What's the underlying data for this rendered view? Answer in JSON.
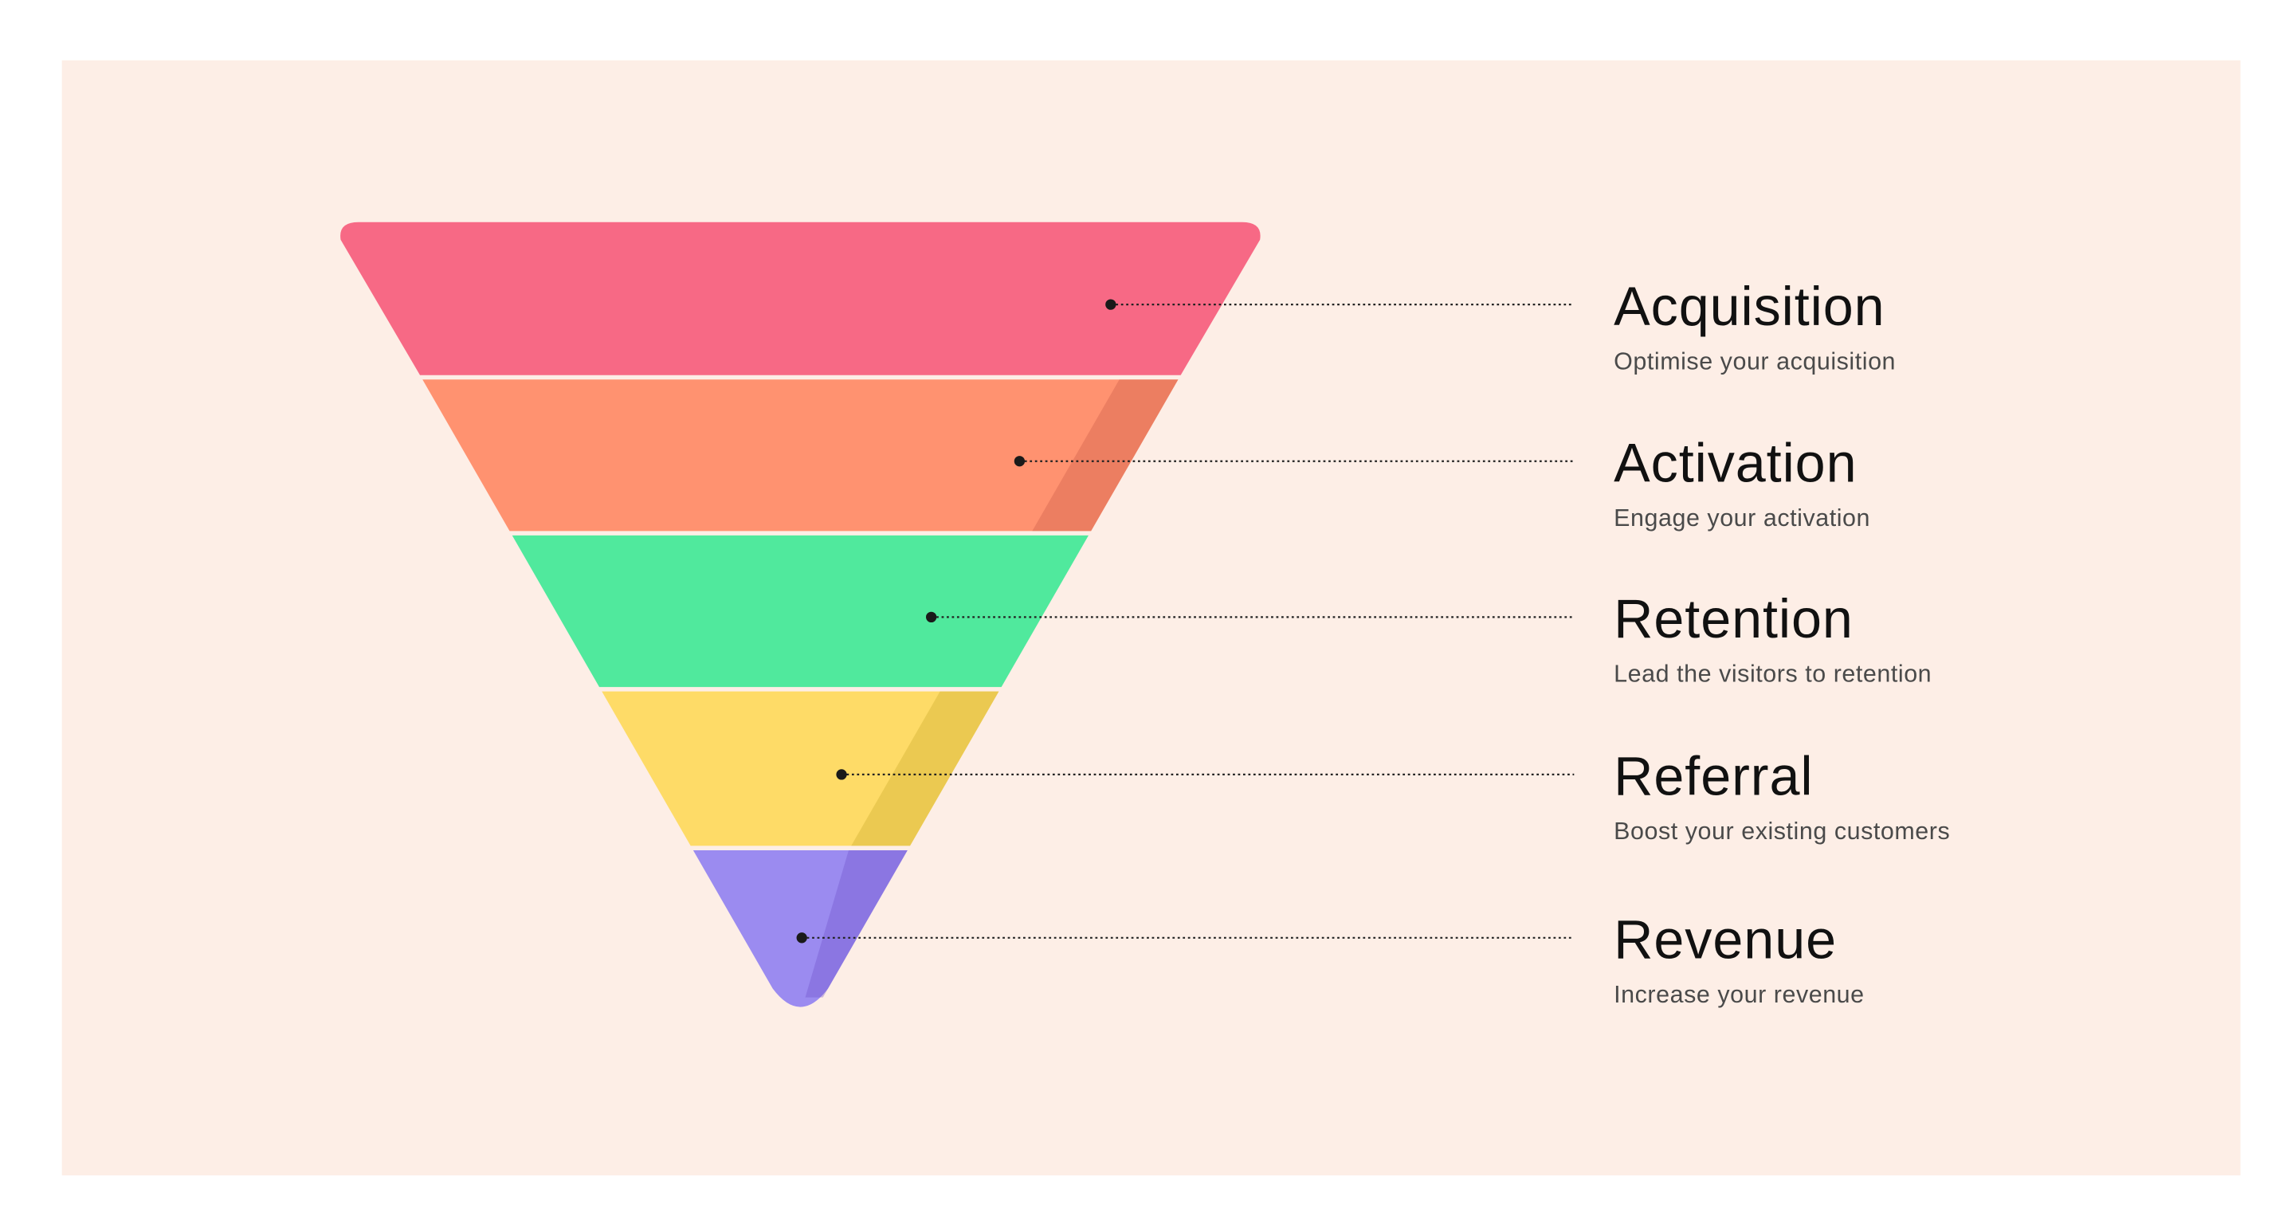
{
  "stages": [
    {
      "title": "Acquisition",
      "subtitle": "Optimise your acquisition"
    },
    {
      "title": "Activation",
      "subtitle": "Engage your activation"
    },
    {
      "title": "Retention",
      "subtitle": "Lead the visitors to retention"
    },
    {
      "title": "Referral",
      "subtitle": "Boost your existing customers"
    },
    {
      "title": "Revenue",
      "subtitle": "Increase your revenue"
    }
  ]
}
